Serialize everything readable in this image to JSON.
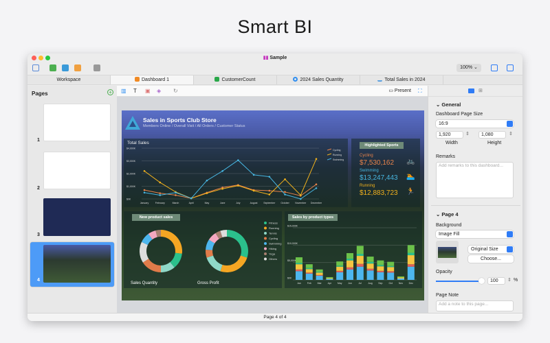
{
  "hero_title": "Smart BI",
  "window": {
    "title": "Sample",
    "zoom": "100%"
  },
  "tabs": [
    {
      "label": "Workspace",
      "color": ""
    },
    {
      "label": "Dashboard 1",
      "color": "#f08a24"
    },
    {
      "label": "CustomerCount",
      "color": "#2aa84a"
    },
    {
      "label": "2024 Sales Quantity",
      "color": "#2f8ef0"
    },
    {
      "label": "Total Sales in 2024",
      "color": "#5aa0e0"
    }
  ],
  "sidebar": {
    "title": "Pages",
    "pages": [
      "1",
      "2",
      "3",
      "4"
    ],
    "selected": "4"
  },
  "canvas_toolbar": {
    "present_label": "Present"
  },
  "dashboard": {
    "title": "Sales in Sports Club Store",
    "subtitle": "Members Online / Overall Visit / All Orders / Customer Status",
    "line_chart": {
      "title": "Total Sales",
      "y_ticks": [
        "$0K",
        "$1,000K",
        "$2,000K",
        "$3,000K",
        "$4,000K"
      ],
      "ymax": 4000,
      "months": [
        "January",
        "February",
        "March",
        "April",
        "May",
        "June",
        "July",
        "August",
        "September",
        "October",
        "November",
        "December"
      ],
      "series": [
        {
          "name": "Cycling",
          "color": "#e8834a",
          "values": [
            700,
            450,
            300,
            50,
            500,
            900,
            1100,
            700,
            650,
            550,
            250,
            1150
          ]
        },
        {
          "name": "Running",
          "color": "#f2b21c",
          "values": [
            2200,
            1300,
            550,
            50,
            450,
            800,
            1050,
            650,
            350,
            1550,
            300,
            3150
          ]
        },
        {
          "name": "Swimming",
          "color": "#47b5e0",
          "values": [
            500,
            300,
            500,
            50,
            1450,
            2200,
            3050,
            1900,
            1750,
            350,
            0,
            850
          ]
        }
      ]
    },
    "highlighted": {
      "title": "Highlighted Sports",
      "items": [
        {
          "label": "Cycling",
          "value": "$7,530,162",
          "color": "#e8834a",
          "icon": "bicycle-icon",
          "glyph": "🚲"
        },
        {
          "label": "Swimming",
          "value": "$13,247,443",
          "color": "#47b5e0",
          "icon": "swimmer-icon",
          "glyph": "🏊"
        },
        {
          "label": "Running",
          "value": "$12,883,723",
          "color": "#f2b21c",
          "icon": "runner-icon",
          "glyph": "🏃"
        }
      ]
    },
    "new_product_sales": {
      "title": "New product sales",
      "donuts": [
        {
          "label": "Sales Quantity",
          "values": [
            12,
            27,
            11,
            16,
            8,
            6,
            4,
            16
          ]
        },
        {
          "label": "Gross Profit",
          "values": [
            30,
            25,
            15,
            6,
            8,
            7,
            4,
            5
          ]
        }
      ],
      "legend": [
        "Fitness",
        "Running",
        "Tennis",
        "Cycling",
        "Swimming",
        "Hiking",
        "Yoga",
        "Others"
      ],
      "colors": [
        "#2bc08c",
        "#f5a623",
        "#8fd8c8",
        "#e07b4a",
        "#4db6ee",
        "#f4a7c0",
        "#a87f6f",
        "#dddddd"
      ]
    },
    "sales_by_type": {
      "title": "Sales by product types",
      "y_ticks": [
        "$0K",
        "$5,000K",
        "$10,000K",
        "$15,000K"
      ],
      "ymax": 15000,
      "months": [
        "Jan",
        "Feb",
        "Mar",
        "Apr",
        "May",
        "Jun",
        "Jul",
        "Aug",
        "Sep",
        "Oct",
        "Nov",
        "Dec"
      ],
      "segment_colors": [
        "#4db6ee",
        "#e0605a",
        "#f5c542",
        "#2bc08c",
        "#6cc24a"
      ],
      "stacks": [
        [
          2500,
          500,
          1500,
          400,
          1600
        ],
        [
          1800,
          300,
          1000,
          300,
          1100
        ],
        [
          1200,
          200,
          700,
          200,
          700
        ],
        [
          300,
          0,
          200,
          0,
          300
        ],
        [
          2200,
          400,
          1200,
          300,
          1200
        ],
        [
          3000,
          600,
          2000,
          500,
          1600
        ],
        [
          3800,
          800,
          2300,
          600,
          2300
        ],
        [
          2700,
          500,
          1500,
          500,
          1500
        ],
        [
          2200,
          400,
          1300,
          400,
          1300
        ],
        [
          2100,
          400,
          1200,
          300,
          1200
        ],
        [
          400,
          0,
          300,
          0,
          300
        ],
        [
          3800,
          700,
          2600,
          700,
          2200
        ]
      ]
    }
  },
  "properties": {
    "general": "General",
    "page_size_label": "Dashboard Page Size",
    "page_size": "16:9",
    "width": "1,920",
    "height": "1,080",
    "width_label": "Width",
    "height_label": "Height",
    "remarks_label": "Remarks",
    "remarks_placeholder": "Add remarks to this dashboard...",
    "page_section": "Page 4",
    "background_label": "Background",
    "background": "Image Fill",
    "size_mode": "Original Size",
    "choose": "Choose...",
    "opacity_label": "Opacity",
    "opacity": "100",
    "opacity_unit": "%",
    "opacity_fraction": 1.0,
    "note_label": "Page Note",
    "note_placeholder": "Add a note to this page..."
  },
  "status": "Page 4 of 4"
}
